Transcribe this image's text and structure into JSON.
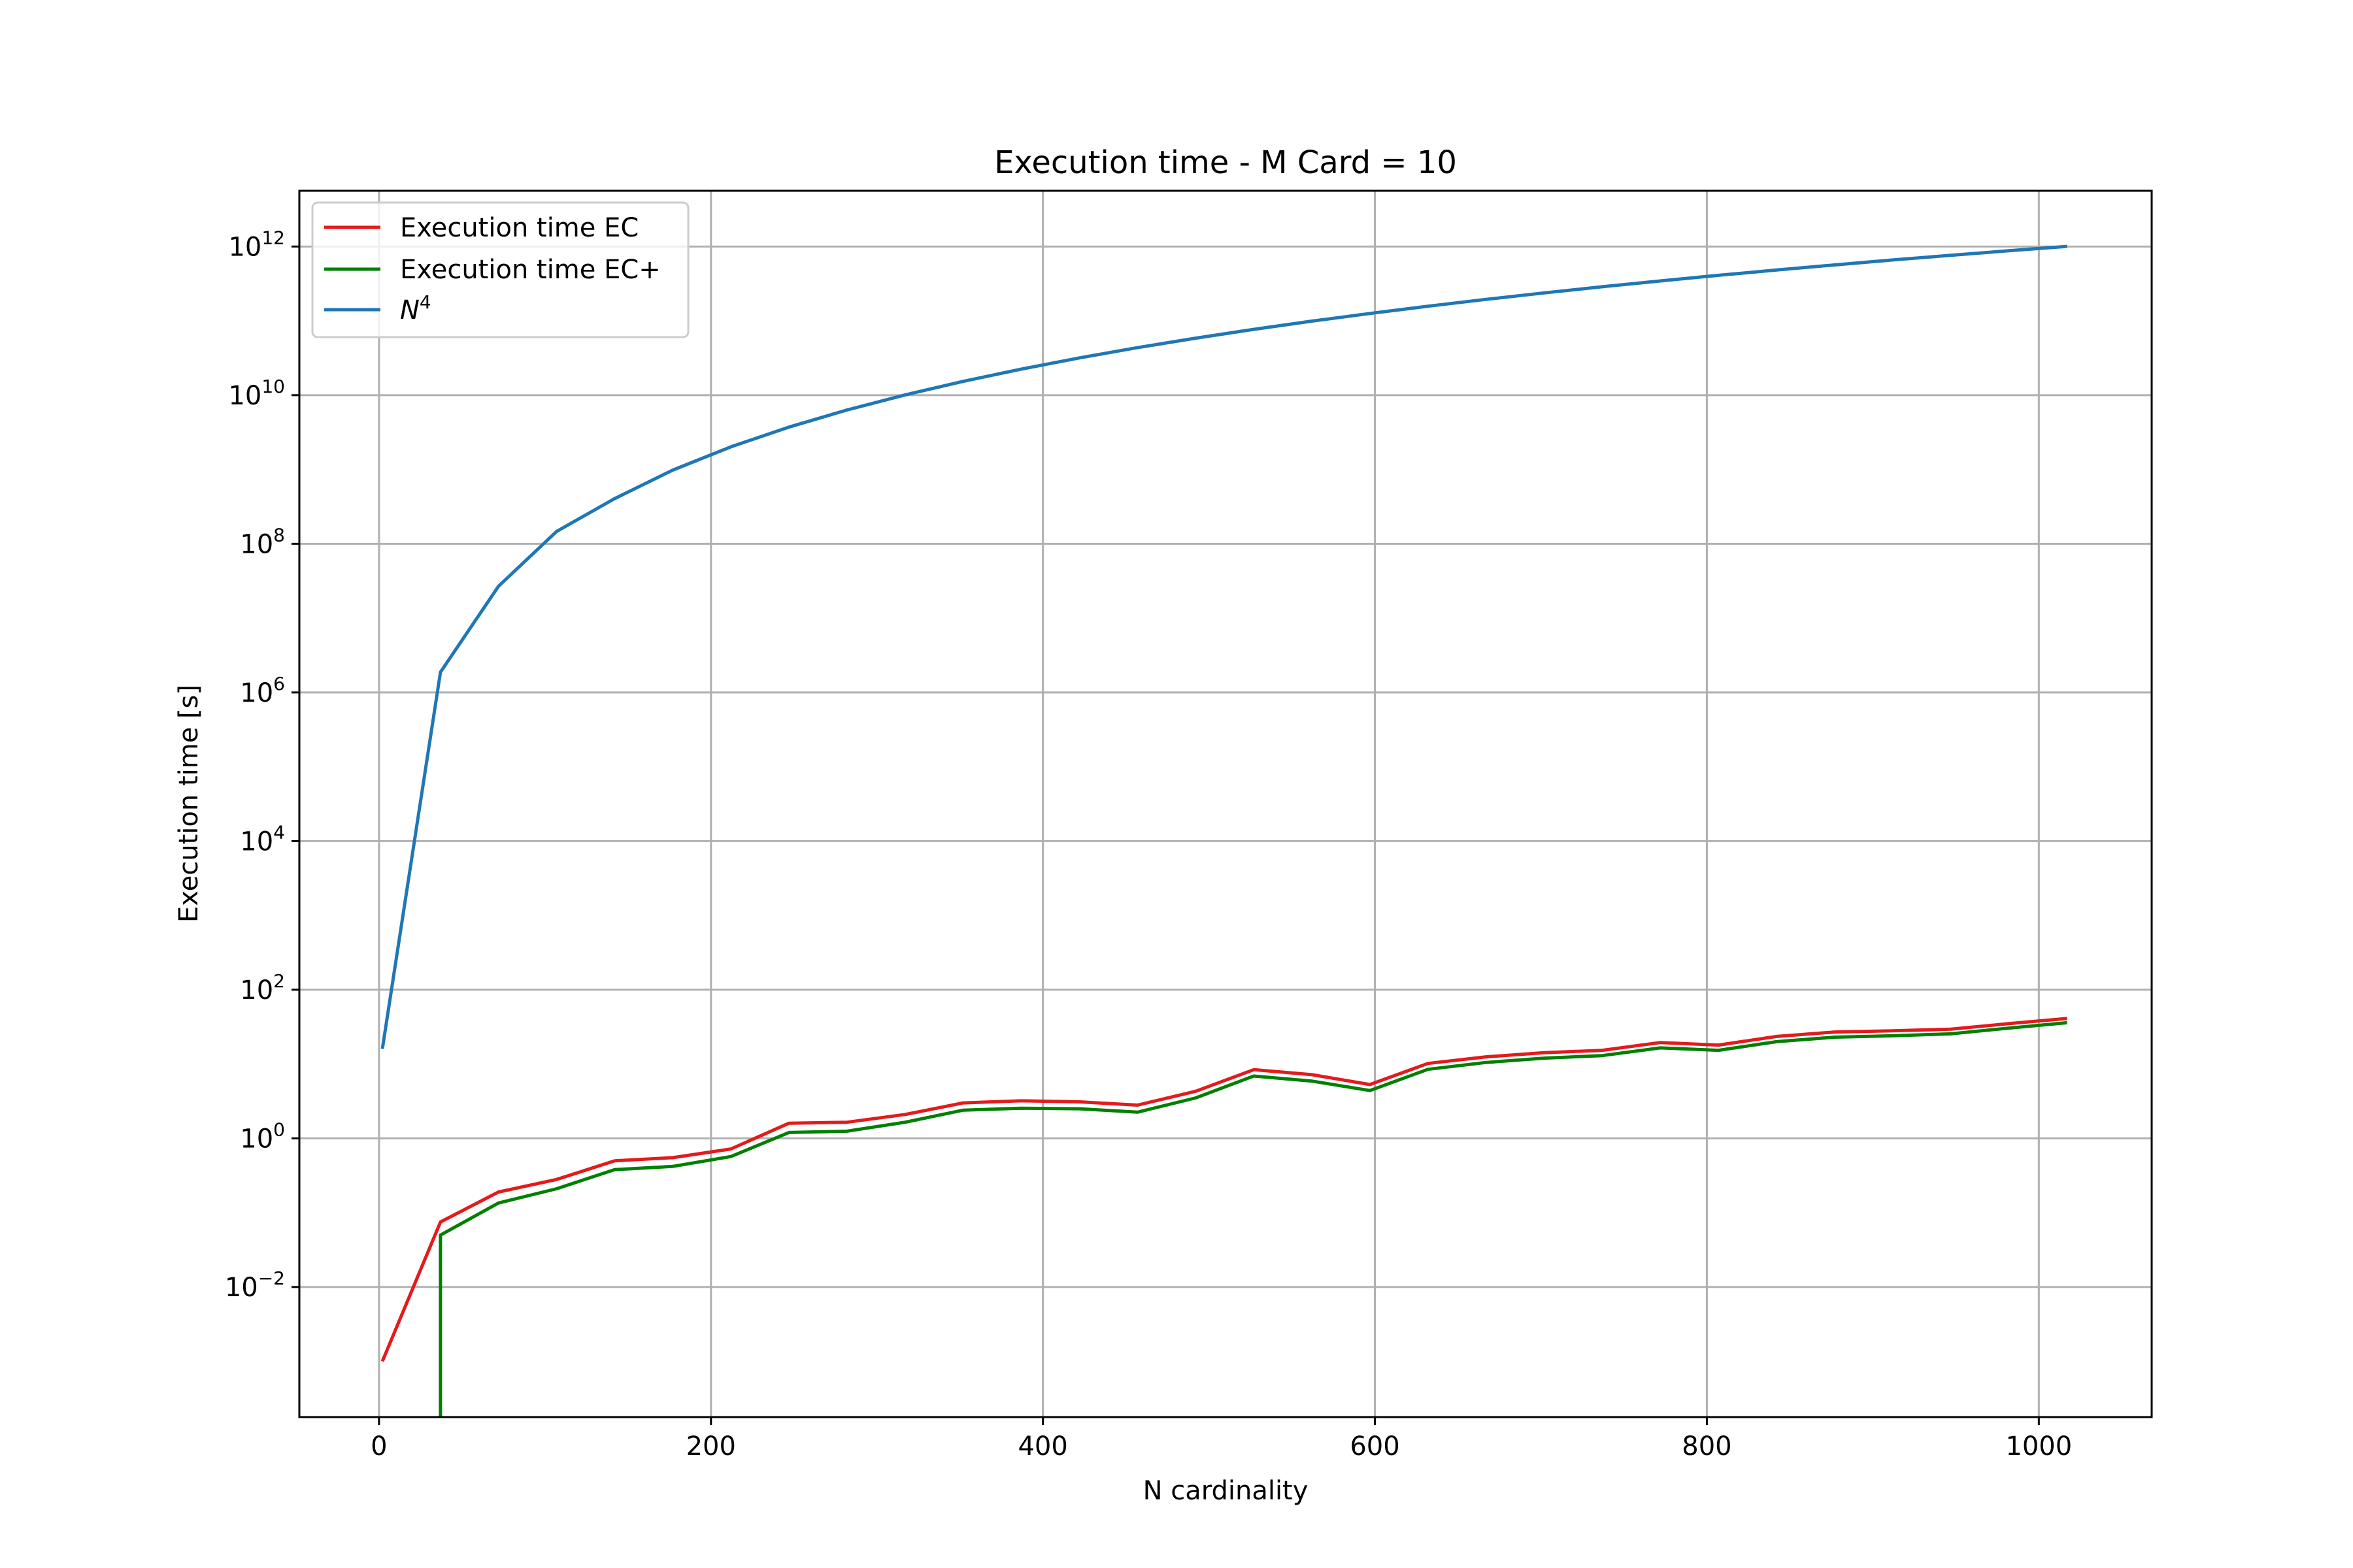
{
  "chart_data": {
    "type": "line",
    "title": "Execution time - M Card = 10",
    "xlabel": "N cardinality",
    "ylabel": "Execution time [s]",
    "xlim": [
      -48,
      1068
    ],
    "ylim_log10": [
      -3.75,
      12.75
    ],
    "yscale": "log",
    "grid": true,
    "legend_position": "top-left",
    "x_ticks": [
      {
        "value": 0,
        "label": "0"
      },
      {
        "value": 200,
        "label": "200"
      },
      {
        "value": 400,
        "label": "400"
      },
      {
        "value": 600,
        "label": "600"
      },
      {
        "value": 800,
        "label": "800"
      },
      {
        "value": 1000,
        "label": "1000"
      }
    ],
    "y_ticks": [
      {
        "log10": -2,
        "base": "10",
        "exp": "−2"
      },
      {
        "log10": 0,
        "base": "10",
        "exp": "0"
      },
      {
        "log10": 2,
        "base": "10",
        "exp": "2"
      },
      {
        "log10": 4,
        "base": "10",
        "exp": "4"
      },
      {
        "log10": 6,
        "base": "10",
        "exp": "6"
      },
      {
        "log10": 8,
        "base": "10",
        "exp": "8"
      },
      {
        "log10": 10,
        "base": "10",
        "exp": "10"
      },
      {
        "log10": 12,
        "base": "10",
        "exp": "12"
      }
    ],
    "x": [
      2,
      37,
      72,
      107,
      142,
      177,
      212,
      247,
      282,
      317,
      352,
      387,
      422,
      457,
      492,
      527,
      562,
      597,
      632,
      667,
      702,
      737,
      772,
      807,
      842,
      877,
      912,
      947,
      982,
      1017
    ],
    "series": [
      {
        "name": "Execution time EC",
        "color": "#e41a1c",
        "values": [
          0.001,
          0.075,
          0.19,
          0.28,
          0.5,
          0.55,
          0.72,
          1.6,
          1.65,
          2.1,
          3.0,
          3.2,
          3.1,
          2.8,
          4.3,
          8.4,
          7.2,
          5.3,
          10.2,
          12.5,
          14.2,
          15.3,
          19.5,
          18.0,
          23.5,
          27.0,
          28.0,
          29.5,
          35.0,
          41.0
        ]
      },
      {
        "name": "Execution time EC+",
        "color": "#008000",
        "values": [
          null,
          0.05,
          0.135,
          0.21,
          0.38,
          0.42,
          0.57,
          1.2,
          1.25,
          1.65,
          2.4,
          2.55,
          2.5,
          2.25,
          3.5,
          6.9,
          5.9,
          4.4,
          8.5,
          10.5,
          12.0,
          13.0,
          16.5,
          15.3,
          20.0,
          23.0,
          24.0,
          25.5,
          30.5,
          36.0
        ],
        "drop_to_axis_at_x": 37
      },
      {
        "name": "N⁴",
        "color": "#1f77b4",
        "values": [
          16,
          1874161,
          26873856,
          146830081,
          406586896,
          981506241,
          2019963136,
          3722098081,
          6324066576,
          10098039121,
          15352201216,
          22439771361,
          31708999936,
          43577770561,
          58451458576,
          76788629761,
          99049307136,
          125741448961,
          157362317056,
          194475140401,
          237633476356,
          287450475461,
          344537317376,
          409508004481,
          483038546176,
          565841095441,
          658636416256,
          762173369761,
          877227452676,
          1004601306961
        ]
      }
    ],
    "legend": [
      {
        "label": "Execution time EC",
        "color": "#e41a1c"
      },
      {
        "label": "Execution time EC+",
        "color": "#008000"
      },
      {
        "label_main": "N",
        "label_sup": "4",
        "color": "#1f77b4"
      }
    ]
  }
}
